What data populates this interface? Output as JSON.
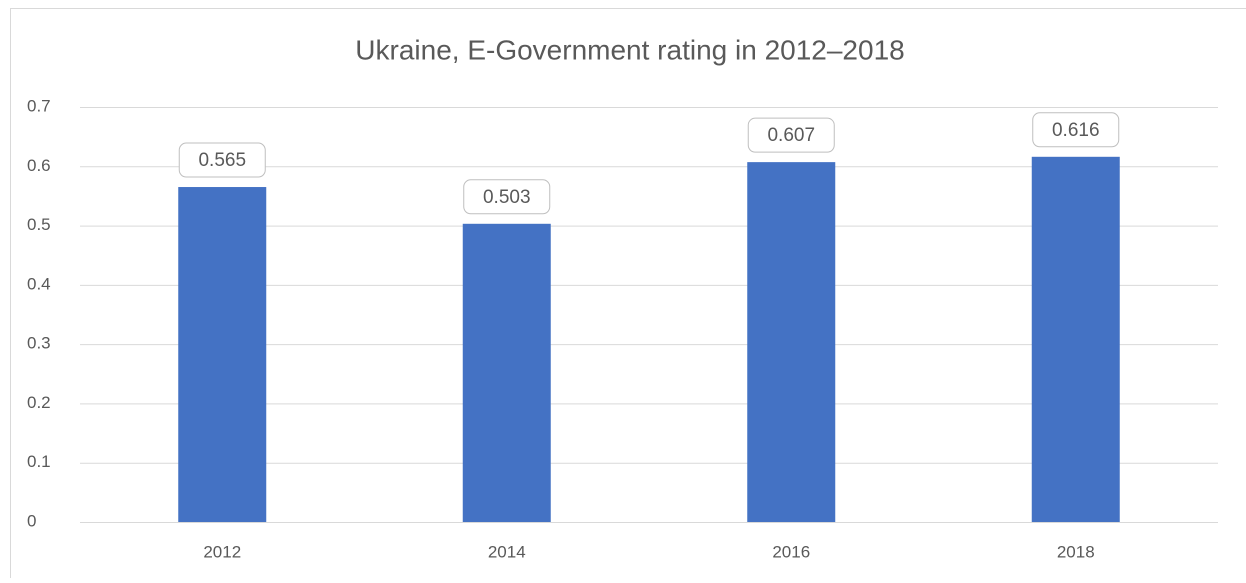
{
  "chart_data": {
    "type": "bar",
    "title": "Ukraine, E-Government rating in 2012–2018",
    "categories": [
      "2012",
      "2014",
      "2016",
      "2018"
    ],
    "values": [
      0.565,
      0.503,
      0.607,
      0.616
    ],
    "color": "#4472c4",
    "ylim": [
      0,
      0.7
    ],
    "yticks": [
      0,
      0.1,
      0.2,
      0.3,
      0.4,
      0.5,
      0.6,
      0.7
    ],
    "grid": true,
    "data_labels": true
  }
}
